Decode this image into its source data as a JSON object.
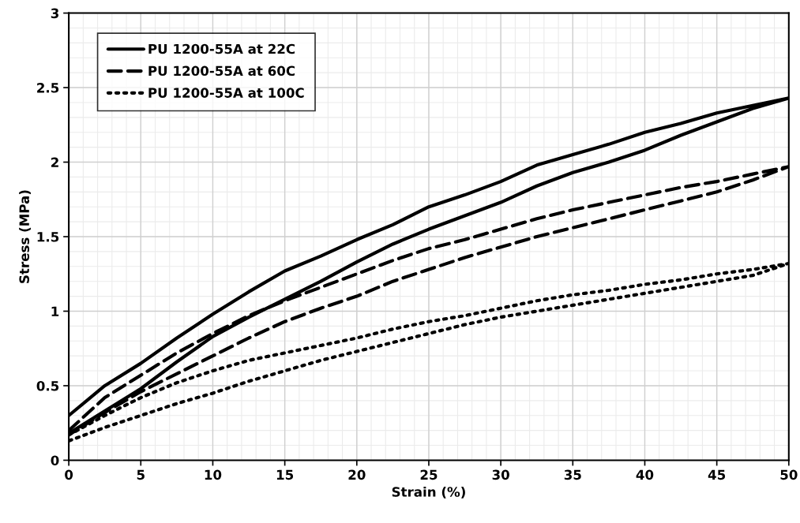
{
  "chart_data": {
    "type": "line",
    "xlabel": "Strain (%)",
    "ylabel": "Stress (MPa)",
    "xlim": [
      0,
      50
    ],
    "ylim": [
      0,
      3
    ],
    "xticks": [
      0,
      5,
      10,
      15,
      20,
      25,
      30,
      35,
      40,
      45,
      50
    ],
    "yticks": [
      0,
      0.5,
      1,
      1.5,
      2,
      2.5,
      3
    ],
    "grid": true,
    "legend": "top left",
    "series": [
      {
        "name": "PU 1200-55A at 22C",
        "color": "#000000",
        "line_style": "solid",
        "x": [
          0,
          2.5,
          5,
          7.5,
          10,
          12.5,
          15,
          17.5,
          20,
          22.5,
          25,
          27.5,
          30,
          32.5,
          35,
          37.5,
          40,
          42.5,
          45,
          47.5,
          50,
          47.5,
          45,
          42.5,
          40,
          37.5,
          35,
          32.5,
          30,
          27.5,
          25,
          22.5,
          20,
          17.5,
          15,
          12.5,
          10,
          7.5,
          5,
          2.5,
          0
        ],
        "values": [
          0.3,
          0.5,
          0.65,
          0.82,
          0.98,
          1.13,
          1.27,
          1.37,
          1.48,
          1.58,
          1.7,
          1.78,
          1.87,
          1.98,
          2.05,
          2.12,
          2.2,
          2.26,
          2.33,
          2.38,
          2.43,
          2.36,
          2.27,
          2.18,
          2.08,
          2.0,
          1.93,
          1.84,
          1.73,
          1.64,
          1.55,
          1.45,
          1.33,
          1.2,
          1.08,
          0.96,
          0.83,
          0.66,
          0.48,
          0.33,
          0.18
        ]
      },
      {
        "name": "PU 1200-55A at 60C",
        "color": "#000000",
        "line_style": "dashed",
        "x": [
          0,
          2.5,
          5,
          7.5,
          10,
          12.5,
          15,
          17.5,
          20,
          22.5,
          25,
          27.5,
          30,
          32.5,
          35,
          37.5,
          40,
          42.5,
          45,
          47.5,
          50,
          47.5,
          45,
          42.5,
          40,
          37.5,
          35,
          32.5,
          30,
          27.5,
          25,
          22.5,
          20,
          17.5,
          15,
          12.5,
          10,
          7.5,
          5,
          2.5,
          0
        ],
        "values": [
          0.2,
          0.42,
          0.57,
          0.72,
          0.85,
          0.97,
          1.07,
          1.16,
          1.25,
          1.34,
          1.42,
          1.48,
          1.55,
          1.62,
          1.68,
          1.73,
          1.78,
          1.83,
          1.87,
          1.92,
          1.97,
          1.88,
          1.8,
          1.74,
          1.68,
          1.62,
          1.56,
          1.5,
          1.43,
          1.36,
          1.28,
          1.2,
          1.1,
          1.02,
          0.93,
          0.82,
          0.7,
          0.58,
          0.46,
          0.32,
          0.17
        ]
      },
      {
        "name": "PU 1200-55A at 100C",
        "color": "#000000",
        "line_style": "dotted",
        "x": [
          0,
          2.5,
          5,
          7.5,
          10,
          12.5,
          15,
          17.5,
          20,
          22.5,
          25,
          27.5,
          30,
          32.5,
          35,
          37.5,
          40,
          42.5,
          45,
          47.5,
          50,
          47.5,
          45,
          42.5,
          40,
          37.5,
          35,
          32.5,
          30,
          27.5,
          25,
          22.5,
          20,
          17.5,
          15,
          12.5,
          10,
          7.5,
          5,
          2.5,
          0
        ],
        "values": [
          0.17,
          0.3,
          0.42,
          0.52,
          0.6,
          0.67,
          0.72,
          0.77,
          0.82,
          0.88,
          0.93,
          0.97,
          1.02,
          1.07,
          1.11,
          1.14,
          1.18,
          1.21,
          1.25,
          1.28,
          1.32,
          1.24,
          1.2,
          1.16,
          1.12,
          1.08,
          1.04,
          1.0,
          0.96,
          0.91,
          0.85,
          0.79,
          0.73,
          0.67,
          0.6,
          0.53,
          0.45,
          0.38,
          0.3,
          0.22,
          0.13
        ]
      }
    ]
  }
}
